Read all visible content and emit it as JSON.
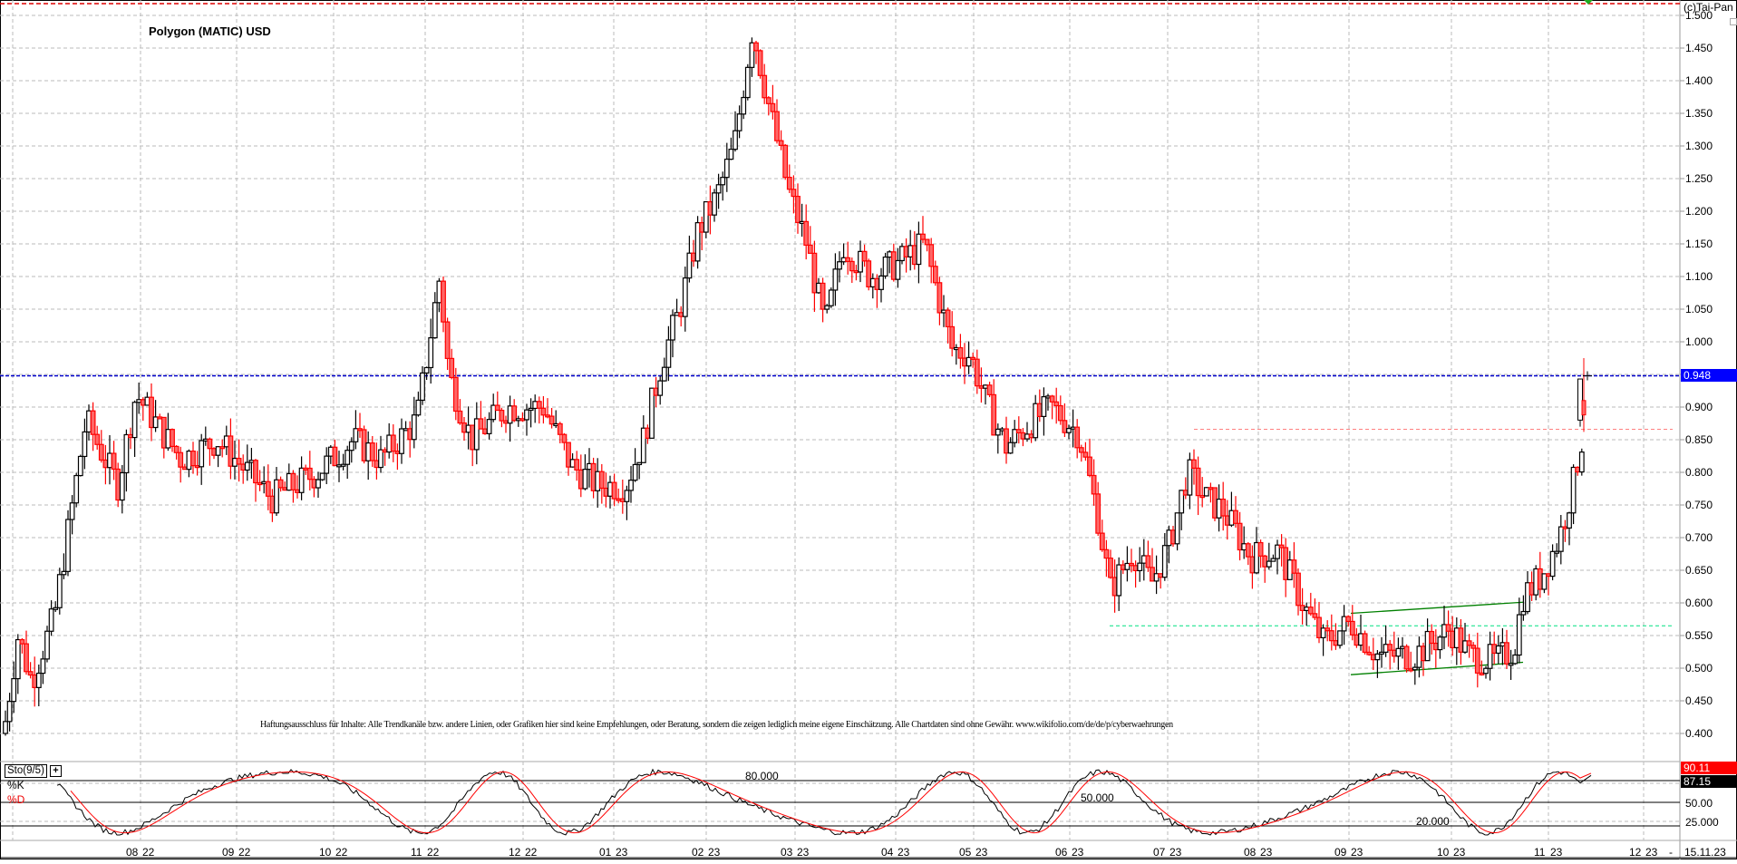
{
  "header": {
    "title": "Polygon (MATIC) USD",
    "copyright": "(c)Tai-Pan"
  },
  "disclaimer": "Haftungsausschluss für Inhalte: Alle Trendkanäle bzw. andere Linien, oder Grafiken hier sind keine Empfehlungen, oder Beratung, sondern die zeigen lediglich meine eigene Einschätzung. Alle Chartdaten sind ohne Gewähr.  www.wikifolio.com/de/de/p/cyberwaehrungen",
  "price_axis": {
    "labels": [
      "1.500",
      "1.450",
      "1.400",
      "1.350",
      "1.300",
      "1.250",
      "1.200",
      "1.150",
      "1.100",
      "1.050",
      "1.000",
      "0.948",
      "0.900",
      "0.850",
      "0.800",
      "0.750",
      "0.700",
      "0.650",
      "0.600",
      "0.550",
      "0.500",
      "0.450",
      "0.400"
    ],
    "current_price": "0.948",
    "current_price_color": "#0000ff"
  },
  "indicator": {
    "name": "Sto(9/5)",
    "add_button": "+",
    "k_label": "%K",
    "d_label": "%D",
    "k_value": "87.15",
    "d_value": "90.11",
    "level_labels": [
      "50.00",
      "25.000"
    ],
    "annotations": [
      "80.000",
      "50.000",
      "20.000"
    ],
    "k_color": "#000000",
    "d_color": "#ff0000"
  },
  "time_axis": {
    "labels": [
      "08|22",
      "09|22",
      "10|22",
      "11|22",
      "12|22",
      "01|23",
      "02|23",
      "03|23",
      "04|23",
      "05|23",
      "06|23",
      "07|23",
      "08|23",
      "09|23",
      "10|23",
      "11|23",
      "12|23"
    ],
    "separator": "-",
    "end_date": "15.11.23"
  },
  "colors": {
    "up_candle": "#ffffff",
    "down_candle": "#ff6666",
    "down_border": "#ff0000",
    "grid": "#bbbbbb",
    "channel": "#008000",
    "support_line": "#00e080",
    "resistance_line": "#ff8080",
    "high_line": "#dd0000"
  },
  "chart_data": {
    "type": "candlestick",
    "title": "Polygon (MATIC) USD",
    "xlabel": "",
    "ylabel": "USD",
    "ylim": [
      0.37,
      1.51
    ],
    "grid": true,
    "x_ticks": [
      "08/22",
      "09/22",
      "10/22",
      "11/22",
      "12/22",
      "01/23",
      "02/23",
      "03/23",
      "04/23",
      "05/23",
      "06/23",
      "07/23",
      "08/23",
      "09/23",
      "10/23",
      "11/23",
      "12/23"
    ],
    "last_price": 0.948,
    "last_date": "15.11.23",
    "horizontal_lines": [
      {
        "label": "current price",
        "value": 0.948,
        "color": "#0000ff"
      },
      {
        "label": "all-time chart high",
        "value": 1.51,
        "color": "#dd0000"
      },
      {
        "label": "resistance",
        "value": 0.866,
        "color": "#ff8080"
      },
      {
        "label": "support",
        "value": 0.565,
        "color": "#00e080"
      }
    ],
    "trend_channel": {
      "upper": [
        [
          0.585,
          "09/23"
        ],
        [
          0.6,
          "11/23"
        ]
      ],
      "lower": [
        [
          0.49,
          "09/23"
        ],
        [
          0.508,
          "11/23"
        ]
      ]
    },
    "approx_monthly_close": {
      "08/22": 0.88,
      "09/22": 0.78,
      "10/22": 0.75,
      "11/22": 0.86,
      "12/22": 0.83,
      "01/23": 0.8,
      "02/23": 1.15,
      "03/23": 1.22,
      "04/23": 1.1,
      "05/23": 0.97,
      "06/23": 0.88,
      "07/23": 0.7,
      "08/23": 0.75,
      "09/23": 0.55,
      "10/23": 0.55,
      "11/23": 0.9
    },
    "indicator": {
      "name": "Stochastic (9/5)",
      "levels": [
        80,
        50,
        20
      ],
      "last_k": 87.15,
      "last_d": 90.11
    }
  }
}
